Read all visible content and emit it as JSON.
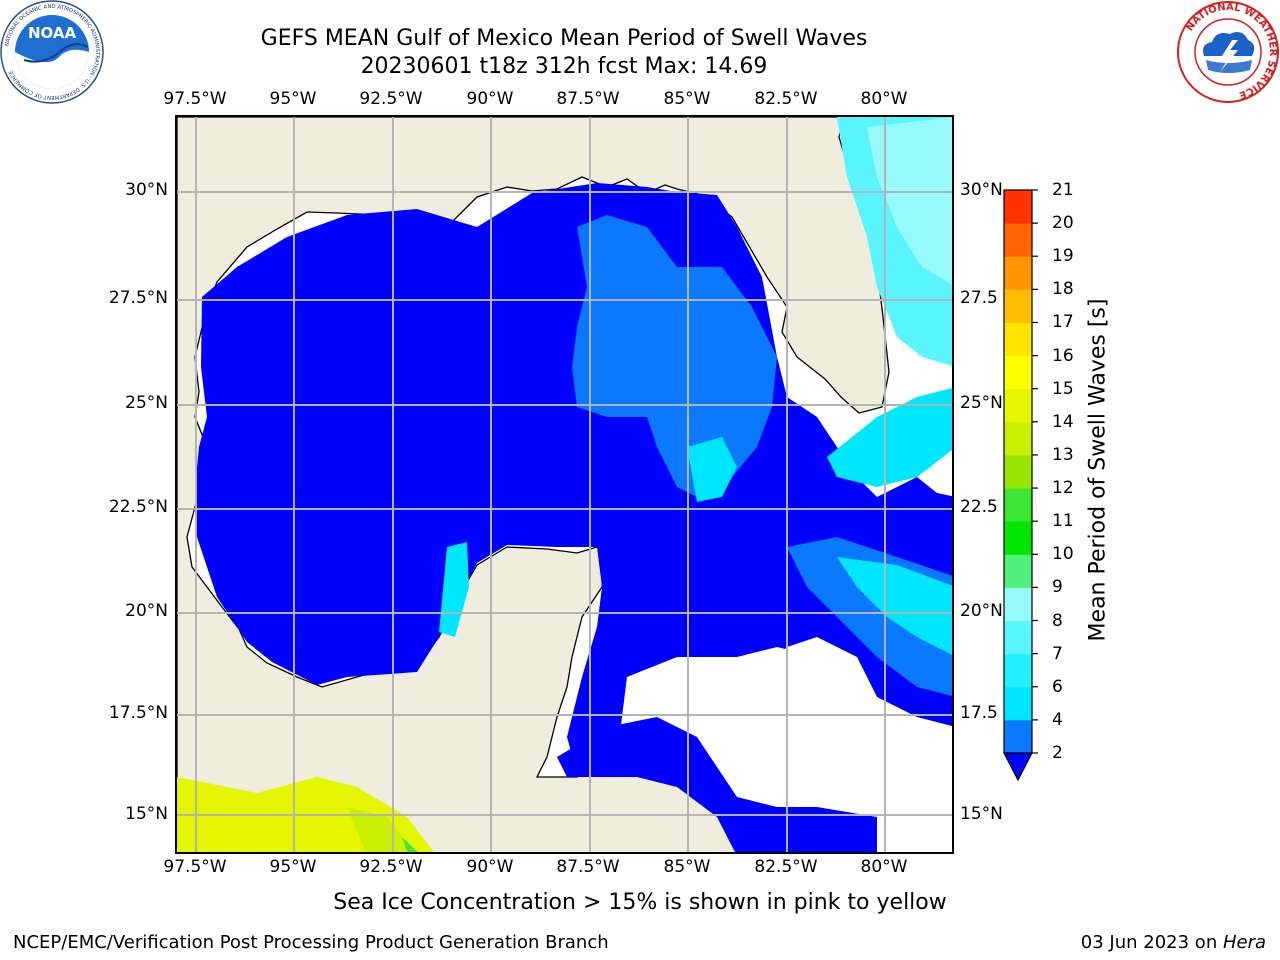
{
  "title": {
    "line1": "GEFS MEAN Gulf of Mexico Mean Period of Swell Waves",
    "line2": "20230601 t18z 312h fcst   Max: 14.69"
  },
  "map": {
    "lon_ticks": [
      "97.5°W",
      "95°W",
      "92.5°W",
      "90°W",
      "87.5°W",
      "85°W",
      "82.5°W",
      "80°W"
    ],
    "lat_ticks_left": [
      "30°N",
      "27.5°N",
      "25°N",
      "22.5°N",
      "20°N",
      "17.5°N",
      "15°N"
    ],
    "lat_ticks_right": [
      "30°N",
      "27.5",
      "25°N",
      "22.5",
      "20°N",
      "17.5",
      "15°N"
    ],
    "lon_range": [
      -98,
      -78.2
    ],
    "lat_range": [
      14,
      31.8
    ],
    "land_color": "#efedde",
    "grid_color": "#b4b4b4"
  },
  "colorbar": {
    "label": "Mean Period of Swell Waves [s]",
    "ticks": [
      "2",
      "4",
      "6",
      "7",
      "8",
      "9",
      "10",
      "11",
      "12",
      "13",
      "14",
      "15",
      "16",
      "17",
      "18",
      "19",
      "20",
      "21"
    ],
    "colors": [
      "#0a78ff",
      "#00e6ff",
      "#23f0ff",
      "#5af4ff",
      "#96fafa",
      "#50f07a",
      "#00e600",
      "#3ce632",
      "#96e600",
      "#c8f000",
      "#e6f500",
      "#ffff00",
      "#ffe600",
      "#ffbe00",
      "#ff9600",
      "#ff6400",
      "#ff3200"
    ],
    "under_color": "#0000ff"
  },
  "footnote": "Sea Ice Concentration > 15% is shown in pink to yellow",
  "credit": "NCEP/EMC/Verification Post Processing Product Generation Branch",
  "date": {
    "text": "03 Jun 2023 on ",
    "machine": "Hera"
  },
  "logos": {
    "noaa": "NOAA",
    "noaa_ring": "NATIONAL OCEANIC AND ATMOSPHERIC ADMINISTRATION · U.S. DEPARTMENT OF COMMERCE",
    "nws_ring": "NATIONAL WEATHER SERVICE"
  }
}
